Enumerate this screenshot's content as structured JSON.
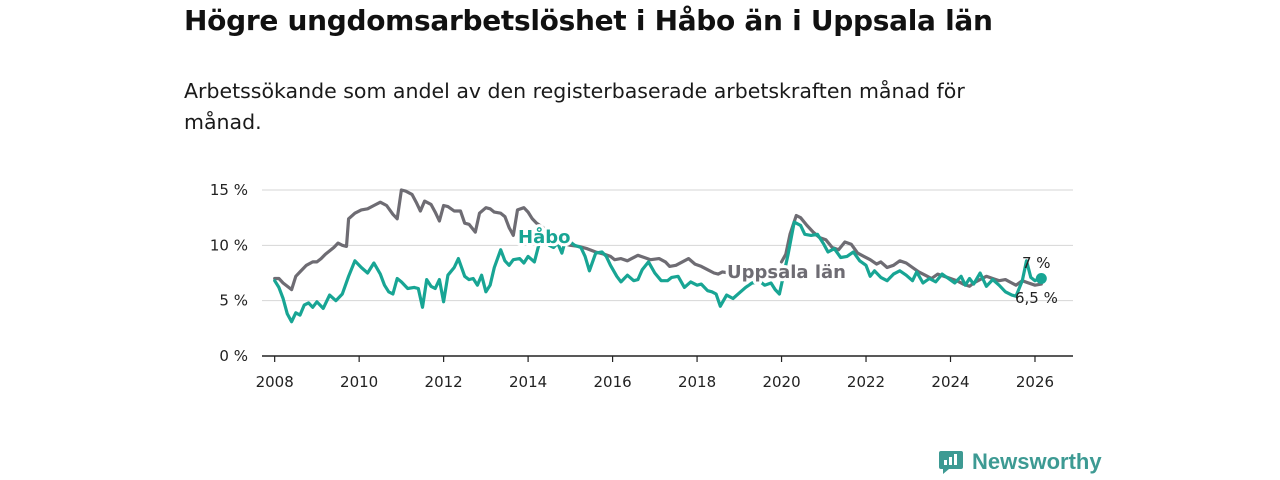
{
  "title": "Högre ungdomsarbetslöshet i Håbo än i Uppsala län",
  "subtitle": "Arbetssökande som andel av den registerbaserade arbetskraften månad för månad.",
  "brand": {
    "name": "Newsworthy",
    "icon": "newsworthy-logo-icon",
    "color": "#3d9a93"
  },
  "chart_data": {
    "type": "line",
    "title": "Högre ungdomsarbetslöshet i Håbo än i Uppsala län",
    "xlabel": "",
    "ylabel": "",
    "xlim": [
      2007.7,
      2026.9
    ],
    "ylim": [
      0,
      15
    ],
    "y_ticks": [
      0,
      5,
      10,
      15
    ],
    "y_tick_labels": [
      "0 %",
      "5 %",
      "10 %",
      "15 %"
    ],
    "x_ticks": [
      2008,
      2010,
      2012,
      2014,
      2016,
      2018,
      2020,
      2022,
      2024,
      2026
    ],
    "x_tick_labels": [
      "2008",
      "2010",
      "2012",
      "2014",
      "2016",
      "2018",
      "2020",
      "2022",
      "2024",
      "2026"
    ],
    "grid": true,
    "series": [
      {
        "name": "Uppsala län",
        "label": "Uppsala län",
        "color": "#6e6c73",
        "end_label": "6,5 %",
        "points": [
          [
            2008.0,
            7.0
          ],
          [
            2008.1,
            7.0
          ],
          [
            2008.2,
            6.6
          ],
          [
            2008.3,
            6.3
          ],
          [
            2008.4,
            6.0
          ],
          [
            2008.5,
            7.2
          ],
          [
            2008.6,
            7.6
          ],
          [
            2008.75,
            8.2
          ],
          [
            2008.9,
            8.5
          ],
          [
            2009.0,
            8.5
          ],
          [
            2009.1,
            8.8
          ],
          [
            2009.2,
            9.2
          ],
          [
            2009.3,
            9.5
          ],
          [
            2009.4,
            9.8
          ],
          [
            2009.5,
            10.2
          ],
          [
            2009.6,
            10.0
          ],
          [
            2009.7,
            9.9
          ],
          [
            2009.75,
            12.4
          ],
          [
            2009.9,
            12.9
          ],
          [
            2010.05,
            13.2
          ],
          [
            2010.2,
            13.3
          ],
          [
            2010.35,
            13.6
          ],
          [
            2010.5,
            13.9
          ],
          [
            2010.65,
            13.6
          ],
          [
            2010.8,
            12.8
          ],
          [
            2010.9,
            12.4
          ],
          [
            2011.0,
            15.0
          ],
          [
            2011.1,
            14.9
          ],
          [
            2011.25,
            14.6
          ],
          [
            2011.35,
            13.9
          ],
          [
            2011.45,
            13.1
          ],
          [
            2011.55,
            14.0
          ],
          [
            2011.7,
            13.7
          ],
          [
            2011.8,
            13.0
          ],
          [
            2011.9,
            12.2
          ],
          [
            2012.0,
            13.6
          ],
          [
            2012.1,
            13.5
          ],
          [
            2012.25,
            13.1
          ],
          [
            2012.4,
            13.1
          ],
          [
            2012.5,
            12.0
          ],
          [
            2012.6,
            11.9
          ],
          [
            2012.75,
            11.2
          ],
          [
            2012.85,
            12.9
          ],
          [
            2013.0,
            13.4
          ],
          [
            2013.1,
            13.3
          ],
          [
            2013.2,
            13.0
          ],
          [
            2013.35,
            12.9
          ],
          [
            2013.45,
            12.6
          ],
          [
            2013.55,
            11.6
          ],
          [
            2013.65,
            10.9
          ],
          [
            2013.75,
            13.2
          ],
          [
            2013.9,
            13.4
          ],
          [
            2014.0,
            13.0
          ],
          [
            2014.1,
            12.4
          ],
          [
            2014.2,
            12.0
          ],
          [
            2014.35,
            11.6
          ],
          [
            2014.5,
            11.1
          ],
          [
            2014.65,
            10.9
          ],
          [
            2014.8,
            10.7
          ],
          [
            2014.9,
            10.1
          ],
          [
            2015.0,
            10.0
          ],
          [
            2015.2,
            9.9
          ],
          [
            2015.4,
            9.7
          ],
          [
            2015.6,
            9.4
          ],
          [
            2015.8,
            9.2
          ],
          [
            2015.95,
            9.0
          ],
          [
            2016.05,
            8.7
          ],
          [
            2016.2,
            8.8
          ],
          [
            2016.35,
            8.6
          ],
          [
            2016.45,
            8.8
          ],
          [
            2016.6,
            9.1
          ],
          [
            2016.75,
            8.9
          ],
          [
            2016.9,
            8.7
          ],
          [
            2017.1,
            8.8
          ],
          [
            2017.25,
            8.5
          ],
          [
            2017.35,
            8.1
          ],
          [
            2017.5,
            8.2
          ],
          [
            2017.65,
            8.5
          ],
          [
            2017.8,
            8.8
          ],
          [
            2017.95,
            8.3
          ],
          [
            2018.1,
            8.1
          ],
          [
            2018.25,
            7.8
          ],
          [
            2018.4,
            7.5
          ],
          [
            2018.5,
            7.4
          ],
          [
            2018.6,
            7.6
          ],
          [
            2018.75,
            7.5
          ],
          [
            2020.0,
            8.5
          ],
          [
            2020.1,
            9.2
          ],
          [
            2020.2,
            11.0
          ],
          [
            2020.35,
            12.7
          ],
          [
            2020.45,
            12.5
          ],
          [
            2020.6,
            11.8
          ],
          [
            2020.75,
            11.2
          ],
          [
            2020.9,
            10.7
          ],
          [
            2021.05,
            10.5
          ],
          [
            2021.2,
            9.8
          ],
          [
            2021.35,
            9.6
          ],
          [
            2021.5,
            10.3
          ],
          [
            2021.65,
            10.1
          ],
          [
            2021.8,
            9.3
          ],
          [
            2021.95,
            9.0
          ],
          [
            2022.1,
            8.7
          ],
          [
            2022.25,
            8.3
          ],
          [
            2022.35,
            8.5
          ],
          [
            2022.5,
            8.0
          ],
          [
            2022.65,
            8.2
          ],
          [
            2022.8,
            8.6
          ],
          [
            2022.95,
            8.4
          ],
          [
            2023.1,
            8.0
          ],
          [
            2023.25,
            7.6
          ],
          [
            2023.4,
            7.3
          ],
          [
            2023.55,
            7.0
          ],
          [
            2023.7,
            7.4
          ],
          [
            2023.85,
            7.2
          ],
          [
            2024.0,
            7.0
          ],
          [
            2024.15,
            6.8
          ],
          [
            2024.3,
            6.5
          ],
          [
            2024.45,
            6.3
          ],
          [
            2024.55,
            6.6
          ],
          [
            2024.7,
            6.9
          ],
          [
            2024.85,
            7.2
          ],
          [
            2025.0,
            7.0
          ],
          [
            2025.15,
            6.8
          ],
          [
            2025.3,
            6.9
          ],
          [
            2025.45,
            6.6
          ],
          [
            2025.55,
            6.4
          ],
          [
            2025.7,
            6.8
          ],
          [
            2025.85,
            6.6
          ],
          [
            2026.0,
            6.4
          ],
          [
            2026.15,
            6.5
          ]
        ]
      },
      {
        "name": "Håbo",
        "label": "Håbo",
        "color": "#18a594",
        "end_label": "7 %",
        "points": [
          [
            2008.0,
            6.8
          ],
          [
            2008.1,
            6.2
          ],
          [
            2008.2,
            5.2
          ],
          [
            2008.3,
            3.8
          ],
          [
            2008.4,
            3.1
          ],
          [
            2008.5,
            3.9
          ],
          [
            2008.6,
            3.7
          ],
          [
            2008.7,
            4.6
          ],
          [
            2008.8,
            4.8
          ],
          [
            2008.9,
            4.4
          ],
          [
            2009.0,
            4.9
          ],
          [
            2009.15,
            4.3
          ],
          [
            2009.3,
            5.5
          ],
          [
            2009.45,
            5.0
          ],
          [
            2009.6,
            5.6
          ],
          [
            2009.75,
            7.2
          ],
          [
            2009.9,
            8.6
          ],
          [
            2010.05,
            8.0
          ],
          [
            2010.2,
            7.5
          ],
          [
            2010.35,
            8.4
          ],
          [
            2010.5,
            7.4
          ],
          [
            2010.6,
            6.4
          ],
          [
            2010.7,
            5.8
          ],
          [
            2010.8,
            5.6
          ],
          [
            2010.9,
            7.0
          ],
          [
            2011.0,
            6.7
          ],
          [
            2011.15,
            6.1
          ],
          [
            2011.3,
            6.2
          ],
          [
            2011.4,
            6.1
          ],
          [
            2011.5,
            4.4
          ],
          [
            2011.6,
            6.9
          ],
          [
            2011.7,
            6.3
          ],
          [
            2011.8,
            6.1
          ],
          [
            2011.9,
            6.9
          ],
          [
            2012.0,
            4.9
          ],
          [
            2012.1,
            7.3
          ],
          [
            2012.25,
            8.0
          ],
          [
            2012.35,
            8.8
          ],
          [
            2012.5,
            7.2
          ],
          [
            2012.6,
            6.9
          ],
          [
            2012.7,
            7.0
          ],
          [
            2012.8,
            6.4
          ],
          [
            2012.9,
            7.3
          ],
          [
            2013.0,
            5.8
          ],
          [
            2013.1,
            6.4
          ],
          [
            2013.2,
            8.0
          ],
          [
            2013.35,
            9.6
          ],
          [
            2013.45,
            8.6
          ],
          [
            2013.55,
            8.2
          ],
          [
            2013.65,
            8.7
          ],
          [
            2013.8,
            8.8
          ],
          [
            2013.9,
            8.4
          ],
          [
            2014.0,
            9.0
          ],
          [
            2014.15,
            8.5
          ],
          [
            2014.25,
            10.0
          ],
          [
            2014.4,
            10.4
          ],
          [
            2014.5,
            10.0
          ],
          [
            2014.6,
            9.8
          ],
          [
            2014.7,
            10.2
          ],
          [
            2014.8,
            9.3
          ],
          [
            2014.9,
            10.7
          ],
          [
            2015.0,
            10.3
          ],
          [
            2015.1,
            10.0
          ],
          [
            2015.25,
            9.8
          ],
          [
            2015.35,
            9.0
          ],
          [
            2015.45,
            7.7
          ],
          [
            2015.6,
            9.3
          ],
          [
            2015.75,
            9.4
          ],
          [
            2015.85,
            9.0
          ],
          [
            2015.95,
            8.2
          ],
          [
            2016.1,
            7.2
          ],
          [
            2016.2,
            6.7
          ],
          [
            2016.35,
            7.3
          ],
          [
            2016.5,
            6.8
          ],
          [
            2016.6,
            6.9
          ],
          [
            2016.7,
            7.8
          ],
          [
            2016.85,
            8.5
          ],
          [
            2017.0,
            7.5
          ],
          [
            2017.15,
            6.8
          ],
          [
            2017.3,
            6.8
          ],
          [
            2017.4,
            7.1
          ],
          [
            2017.55,
            7.2
          ],
          [
            2017.7,
            6.2
          ],
          [
            2017.85,
            6.7
          ],
          [
            2018.0,
            6.4
          ],
          [
            2018.1,
            6.5
          ],
          [
            2018.25,
            5.9
          ],
          [
            2018.35,
            5.8
          ],
          [
            2018.45,
            5.6
          ],
          [
            2018.55,
            4.5
          ],
          [
            2018.7,
            5.5
          ],
          [
            2018.85,
            5.2
          ],
          [
            2019.0,
            5.7
          ],
          [
            2019.15,
            6.2
          ],
          [
            2019.3,
            6.6
          ],
          [
            2019.5,
            6.7
          ],
          [
            2019.6,
            6.4
          ],
          [
            2019.75,
            6.6
          ],
          [
            2019.85,
            6.0
          ],
          [
            2019.95,
            5.6
          ],
          [
            2020.15,
            9.1
          ],
          [
            2020.3,
            12.1
          ],
          [
            2020.45,
            11.8
          ],
          [
            2020.55,
            11.0
          ],
          [
            2020.7,
            10.9
          ],
          [
            2020.85,
            11.0
          ],
          [
            2021.0,
            10.1
          ],
          [
            2021.1,
            9.4
          ],
          [
            2021.25,
            9.7
          ],
          [
            2021.4,
            8.9
          ],
          [
            2021.55,
            9.0
          ],
          [
            2021.7,
            9.4
          ],
          [
            2021.85,
            8.6
          ],
          [
            2022.0,
            8.2
          ],
          [
            2022.1,
            7.2
          ],
          [
            2022.2,
            7.7
          ],
          [
            2022.35,
            7.1
          ],
          [
            2022.5,
            6.8
          ],
          [
            2022.65,
            7.4
          ],
          [
            2022.8,
            7.7
          ],
          [
            2022.95,
            7.3
          ],
          [
            2023.1,
            6.8
          ],
          [
            2023.2,
            7.6
          ],
          [
            2023.35,
            6.6
          ],
          [
            2023.5,
            7.0
          ],
          [
            2023.65,
            6.7
          ],
          [
            2023.8,
            7.4
          ],
          [
            2023.95,
            7.0
          ],
          [
            2024.1,
            6.6
          ],
          [
            2024.25,
            7.2
          ],
          [
            2024.35,
            6.4
          ],
          [
            2024.45,
            7.0
          ],
          [
            2024.55,
            6.5
          ],
          [
            2024.7,
            7.5
          ],
          [
            2024.85,
            6.3
          ],
          [
            2025.0,
            6.9
          ],
          [
            2025.15,
            6.4
          ],
          [
            2025.3,
            5.8
          ],
          [
            2025.45,
            5.5
          ],
          [
            2025.55,
            5.4
          ],
          [
            2025.7,
            6.8
          ],
          [
            2025.8,
            8.6
          ],
          [
            2025.9,
            7.1
          ],
          [
            2026.0,
            6.8
          ],
          [
            2026.1,
            7.0
          ],
          [
            2026.15,
            7.0
          ]
        ]
      }
    ]
  }
}
